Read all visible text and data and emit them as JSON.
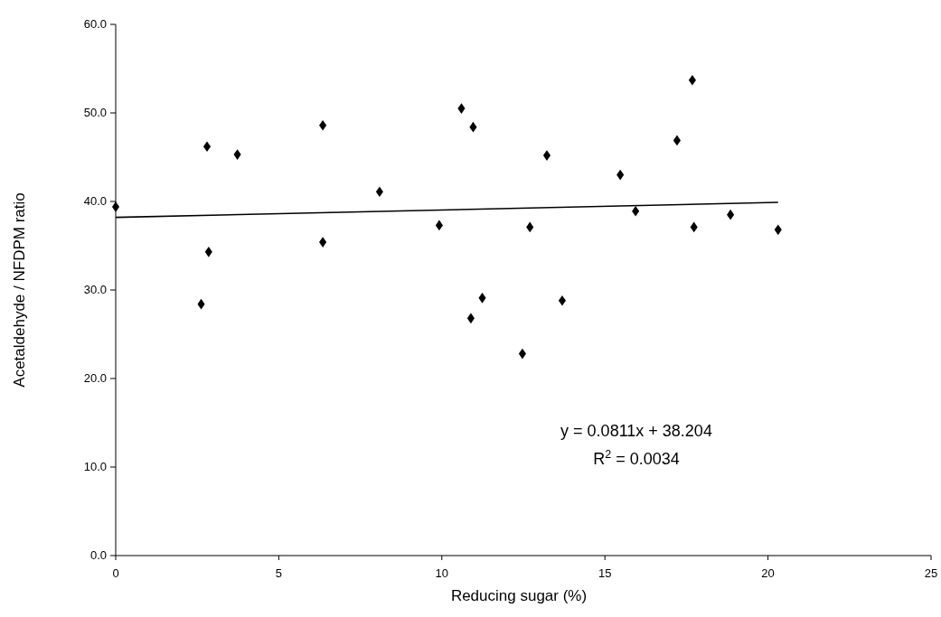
{
  "chart_data": {
    "type": "scatter",
    "xlabel": "Reducing sugar (%)",
    "ylabel": "Acetaldehyde / NFDPM ratio",
    "xlim": [
      0,
      25
    ],
    "xticks": [
      0,
      5,
      10,
      15,
      20,
      25
    ],
    "ylim": [
      0,
      60
    ],
    "yticks": [
      {
        "value": 0,
        "label": "0.0"
      },
      {
        "value": 10,
        "label": "10.0"
      },
      {
        "value": 20,
        "label": "20.0"
      },
      {
        "value": 30,
        "label": "30.0"
      },
      {
        "value": 40,
        "label": "40.0"
      },
      {
        "value": 50,
        "label": "50.0"
      },
      {
        "value": 60,
        "label": "60.0"
      }
    ],
    "grid": false,
    "marker": "diamond",
    "series": [
      {
        "color": "#000000",
        "x": [
          0,
          2.62,
          2.8,
          2.85,
          3.73,
          6.35,
          6.35,
          8.09,
          9.92,
          10.6,
          10.89,
          10.96,
          11.24,
          12.47,
          12.7,
          13.22,
          13.69,
          15.47,
          15.94,
          17.21,
          17.68,
          17.73,
          18.85,
          20.31
        ],
        "values": [
          39.4,
          28.4,
          46.2,
          34.3,
          45.3,
          48.6,
          35.4,
          41.1,
          37.3,
          50.5,
          26.8,
          48.4,
          29.1,
          22.8,
          37.1,
          45.2,
          28.8,
          43.0,
          38.9,
          46.9,
          53.7,
          37.1,
          38.5,
          36.8
        ]
      },
      {
        "type": "line",
        "color": "#000000",
        "line_style": "solid",
        "marker": "none",
        "x": [
          0,
          20.31
        ],
        "values": [
          38.2,
          39.9
        ]
      }
    ],
    "annotations": [
      "y = 0.0811x + 38.204",
      "R$^{2}$ = 0.0034"
    ]
  }
}
